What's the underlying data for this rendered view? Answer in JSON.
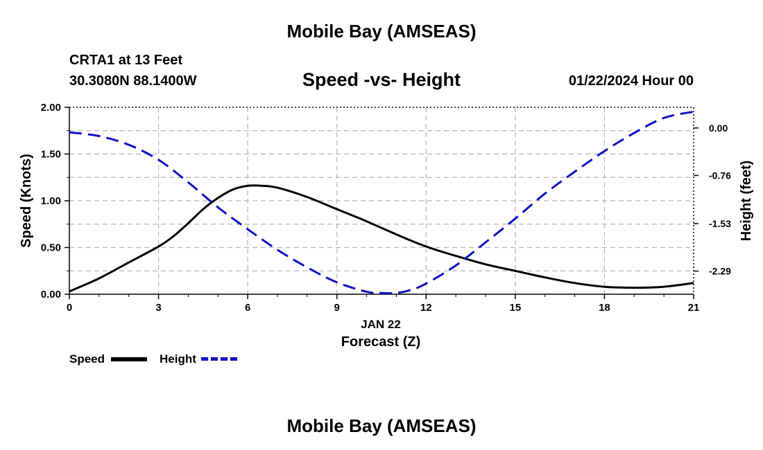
{
  "header": {
    "title": "Mobile Bay (AMSEAS)",
    "station": "CRTA1 at 13 Feet",
    "coords": "30.3080N  88.1400W",
    "date": "01/22/2024 Hour 00"
  },
  "footer": {
    "title": "Mobile Bay (AMSEAS)"
  },
  "legend": {
    "speed_label": "Speed",
    "height_label": "Height"
  },
  "chart_data": {
    "type": "line",
    "title": "Speed -vs- Height",
    "xlabel": "Forecast (Z)",
    "x_sublabel": "JAN 22",
    "ylabel": "Speed (Knots)",
    "y2label": "Height (feet)",
    "xlim": [
      0,
      21
    ],
    "ylim": [
      0,
      2.0
    ],
    "y2lim": [
      -2.66,
      0.33
    ],
    "grid": true,
    "x_ticks": [
      0,
      3,
      6,
      9,
      12,
      15,
      18,
      21
    ],
    "x_tick_labels": [
      "0",
      "3",
      "6",
      "9",
      "12",
      "15",
      "18",
      "21"
    ],
    "y_ticks": [
      0,
      0.5,
      1.0,
      1.5,
      2.0
    ],
    "y_tick_labels": [
      "0.00",
      "0.50",
      "1.00",
      "1.50",
      "2.00"
    ],
    "y2_ticks": [
      0,
      -0.76,
      -1.53,
      -2.29
    ],
    "y2_tick_labels": [
      "0.00",
      "-0.76",
      "-1.53",
      "-2.29"
    ],
    "series": [
      {
        "name": "Speed",
        "axis": "left",
        "color": "#000000",
        "style": "solid",
        "x": [
          0,
          1,
          2,
          3,
          3.5,
          4,
          4.5,
          5,
          5.5,
          6,
          6.5,
          7,
          8,
          9,
          10,
          11,
          12,
          13,
          14,
          15,
          16,
          17,
          18,
          19,
          20,
          21
        ],
        "y": [
          0.03,
          0.17,
          0.34,
          0.51,
          0.62,
          0.76,
          0.91,
          1.03,
          1.12,
          1.16,
          1.16,
          1.14,
          1.04,
          0.91,
          0.78,
          0.64,
          0.51,
          0.41,
          0.32,
          0.25,
          0.18,
          0.12,
          0.08,
          0.07,
          0.08,
          0.12
        ]
      },
      {
        "name": "Height",
        "axis": "right",
        "color": "#1010c8",
        "style": "dashed",
        "x": [
          0,
          1,
          2,
          3,
          4,
          5,
          6,
          7,
          8,
          9,
          10,
          10.5,
          11,
          11.5,
          12,
          13,
          14,
          15,
          16,
          17,
          18,
          19,
          20,
          21
        ],
        "y": [
          -0.07,
          -0.13,
          -0.27,
          -0.51,
          -0.87,
          -1.27,
          -1.62,
          -1.95,
          -2.23,
          -2.47,
          -2.62,
          -2.64,
          -2.64,
          -2.59,
          -2.49,
          -2.2,
          -1.83,
          -1.45,
          -1.05,
          -0.7,
          -0.37,
          -0.08,
          0.16,
          0.26
        ]
      }
    ]
  }
}
